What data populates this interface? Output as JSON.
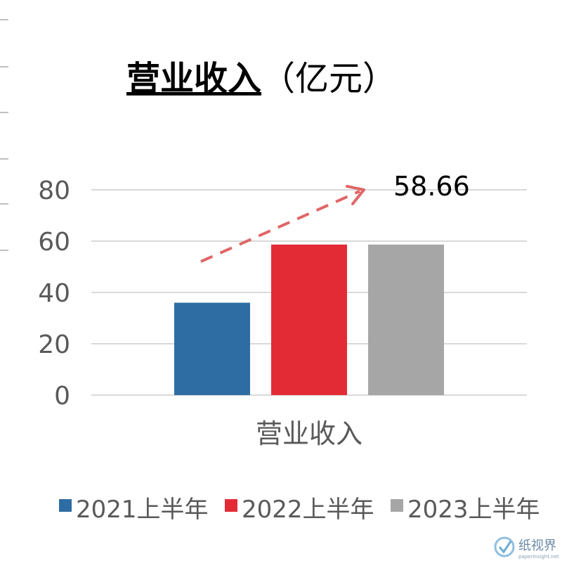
{
  "chart_data": {
    "type": "bar",
    "title": "营业收入",
    "title_unit": "（亿元）",
    "categories": [
      "营业收入"
    ],
    "series": [
      {
        "name": "2021上半年",
        "values": [
          36
        ],
        "color": "#2e6da4"
      },
      {
        "name": "2022上半年",
        "values": [
          58.66
        ],
        "color": "#e32b36"
      },
      {
        "name": "2023上半年",
        "values": [
          58.66
        ],
        "color": "#a6a6a6"
      }
    ],
    "yticks": [
      0,
      20,
      40,
      60,
      80
    ],
    "ylim": [
      0,
      80
    ],
    "grid": true,
    "legend": "bottom",
    "annotation": {
      "text": "58.66",
      "arrow": "dashed trend arrow"
    },
    "arrow_color": "#e06666",
    "axis_text_color": "#595959"
  },
  "watermark": {
    "text": "纸视界",
    "subtext": "paperinsight.net",
    "icon": "checkmark-shield-icon"
  }
}
